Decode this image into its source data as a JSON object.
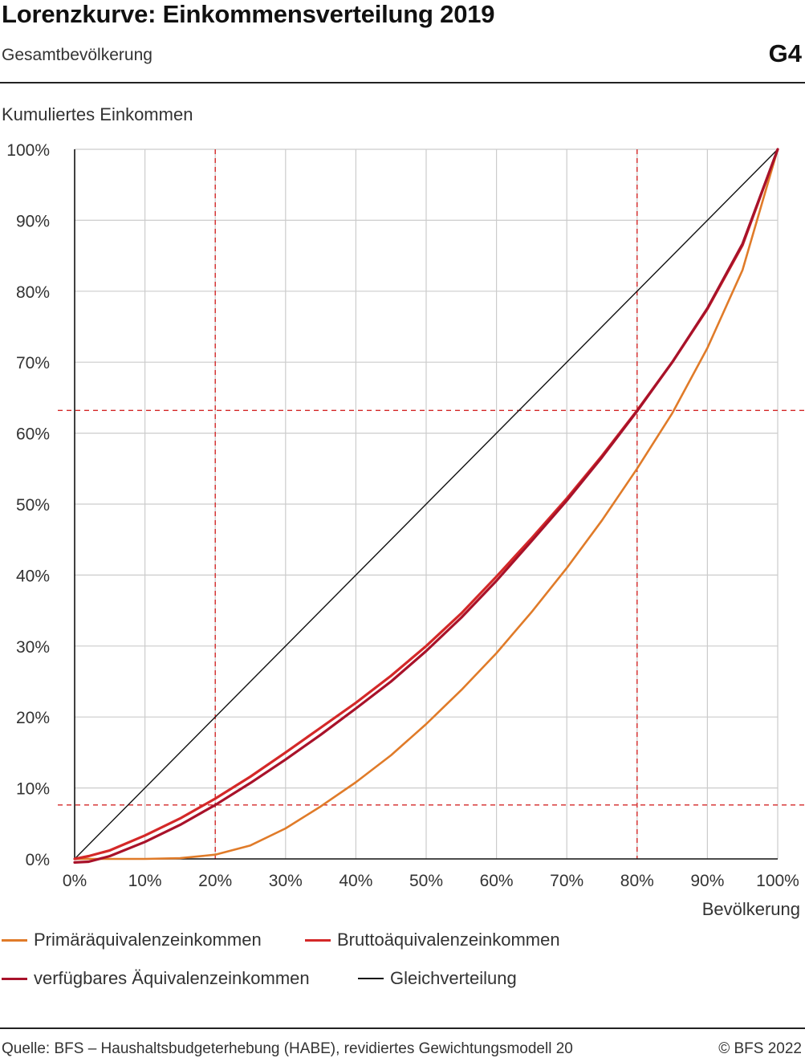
{
  "header": {
    "title": "Lorenzkurve: Einkommensverteilung 2019",
    "subtitle": "Gesamtbevölkerung",
    "figure_id": "G4"
  },
  "footer": {
    "source": "Quelle: BFS – Haushaltsbudgeterhebung (HABE), revidiertes Gewichtungsmodell 20",
    "copyright": "© BFS 2022"
  },
  "chart_data": {
    "type": "line",
    "title": "Lorenzkurve: Einkommensverteilung 2019",
    "subtitle": "Gesamtbevölkerung",
    "xlabel": "Bevölkerung",
    "ylabel": "Kumuliertes Einkommen",
    "xlim": [
      0,
      100
    ],
    "ylim": [
      0,
      100
    ],
    "x_ticks": [
      "0%",
      "10%",
      "20%",
      "30%",
      "40%",
      "50%",
      "60%",
      "70%",
      "80%",
      "90%",
      "100%"
    ],
    "y_ticks": [
      "0%",
      "10%",
      "20%",
      "30%",
      "40%",
      "50%",
      "60%",
      "70%",
      "80%",
      "90%",
      "100%"
    ],
    "grid": true,
    "legend_position": "bottom",
    "series": [
      {
        "name": "Primäräquivalenzeinkommen",
        "color": "#e07b29",
        "x": [
          0,
          5,
          10,
          15,
          20,
          25,
          30,
          35,
          40,
          45,
          50,
          55,
          60,
          65,
          70,
          75,
          80,
          85,
          90,
          95,
          100
        ],
        "y": [
          0,
          0,
          0,
          0.1,
          0.6,
          1.9,
          4.3,
          7.4,
          10.8,
          14.6,
          19.0,
          23.8,
          29.0,
          34.8,
          41.0,
          47.7,
          55.0,
          62.8,
          72.0,
          83.0,
          100
        ]
      },
      {
        "name": "Bruttoäquivalenzeinkommen",
        "color": "#d42828",
        "x": [
          0,
          2,
          5,
          10,
          15,
          20,
          25,
          30,
          35,
          40,
          45,
          50,
          55,
          60,
          65,
          70,
          75,
          80,
          85,
          90,
          95,
          100
        ],
        "y": [
          0,
          0.4,
          1.2,
          3.3,
          5.7,
          8.5,
          11.6,
          15.0,
          18.5,
          22.0,
          25.8,
          30.0,
          34.6,
          39.8,
          45.2,
          50.8,
          56.8,
          63.2,
          70.0,
          77.5,
          86.5,
          100
        ]
      },
      {
        "name": "verfügbares Äquivalenzeinkommen",
        "color": "#a8122a",
        "x": [
          0,
          2,
          5,
          10,
          15,
          20,
          25,
          30,
          35,
          40,
          45,
          50,
          55,
          60,
          65,
          70,
          75,
          80,
          85,
          90,
          95,
          100
        ],
        "y": [
          -0.5,
          -0.4,
          0.4,
          2.4,
          4.8,
          7.6,
          10.7,
          14.0,
          17.5,
          21.2,
          25.0,
          29.3,
          34.0,
          39.2,
          44.8,
          50.5,
          56.6,
          63.1,
          70.0,
          77.6,
          86.7,
          100
        ]
      },
      {
        "name": "Gleichverteilung",
        "color": "#111111",
        "x": [
          0,
          100
        ],
        "y": [
          0,
          100
        ]
      }
    ],
    "reference_lines": {
      "color": "#d42828",
      "style": "dashed",
      "vertical_x": [
        20,
        80
      ],
      "horizontal_y": [
        7.6,
        63.2
      ]
    }
  }
}
